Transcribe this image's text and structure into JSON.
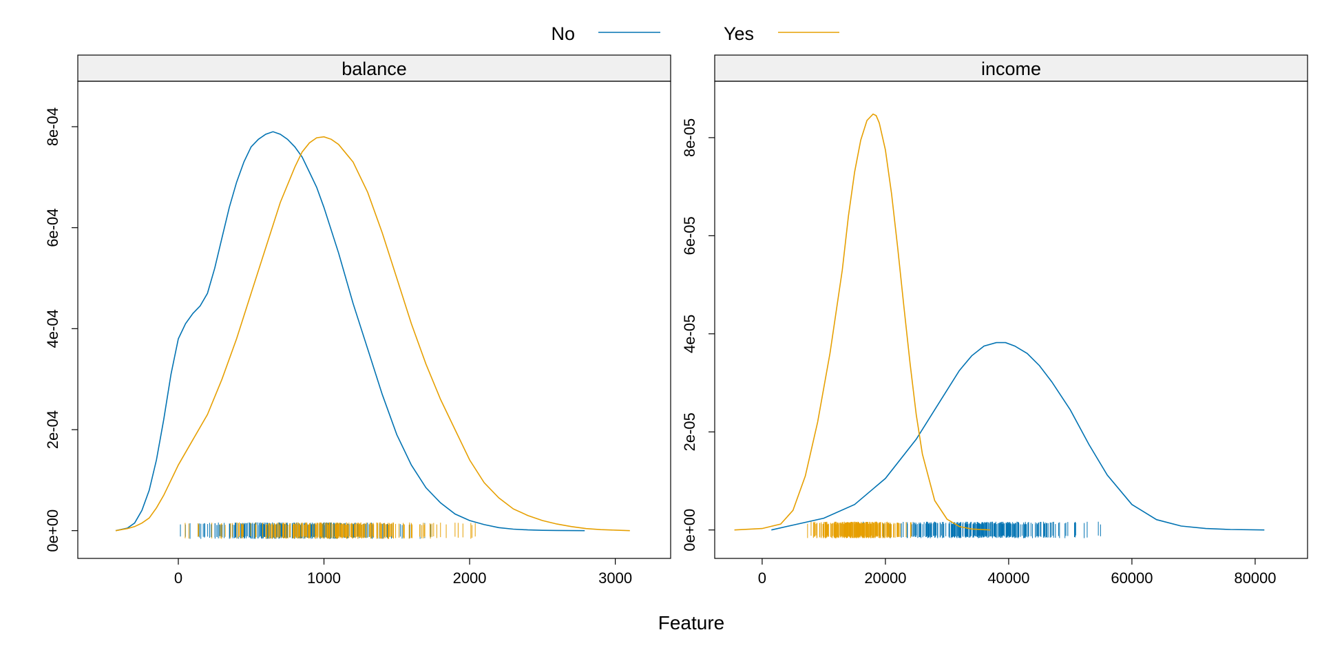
{
  "legend": {
    "placement": "top-center",
    "items": [
      {
        "label": "No",
        "color": "#0072B2"
      },
      {
        "label": "Yes",
        "color": "#E69F00"
      }
    ]
  },
  "chart_data": [
    {
      "type": "line",
      "panel_title": "balance",
      "xlabel": "Feature",
      "ylabel": "",
      "xlim": [
        -690,
        3380
      ],
      "ylim": [
        -5.5e-05,
        0.00089
      ],
      "x_ticks": [
        0,
        1000,
        2000,
        3000
      ],
      "x_tick_labels": [
        "0",
        "1000",
        "2000",
        "3000"
      ],
      "y_ticks": [
        0,
        0.0002,
        0.0004,
        0.0006,
        0.0008
      ],
      "y_tick_labels": [
        "0e+00",
        "2e-04",
        "4e-04",
        "6e-04",
        "8e-04"
      ],
      "grid": false,
      "series": [
        {
          "name": "No",
          "color": "#0072B2",
          "x": [
            -430,
            -350,
            -300,
            -250,
            -200,
            -150,
            -100,
            -50,
            0,
            50,
            100,
            150,
            200,
            250,
            300,
            350,
            400,
            450,
            500,
            550,
            600,
            650,
            700,
            750,
            800,
            850,
            900,
            950,
            1000,
            1100,
            1200,
            1300,
            1400,
            1500,
            1600,
            1700,
            1800,
            1900,
            2000,
            2100,
            2200,
            2300,
            2400,
            2500,
            2600,
            2700,
            2790
          ],
          "y": [
            0.0,
            5e-06,
            1.5e-05,
            4e-05,
            8e-05,
            0.00014,
            0.00022,
            0.00031,
            0.00038,
            0.00041,
            0.00043,
            0.000445,
            0.00047,
            0.00052,
            0.00058,
            0.00064,
            0.00069,
            0.00073,
            0.00076,
            0.000775,
            0.000785,
            0.00079,
            0.000785,
            0.000775,
            0.00076,
            0.00074,
            0.00071,
            0.00068,
            0.00064,
            0.00055,
            0.00045,
            0.00036,
            0.00027,
            0.00019,
            0.00013,
            8.5e-05,
            5.5e-05,
            3.3e-05,
            2e-05,
            1.2e-05,
            6e-06,
            3e-06,
            1.5e-06,
            7e-07,
            3e-07,
            1e-07,
            0.0
          ]
        },
        {
          "name": "Yes",
          "color": "#E69F00",
          "x": [
            -430,
            -350,
            -300,
            -250,
            -200,
            -150,
            -100,
            -50,
            0,
            100,
            200,
            300,
            400,
            500,
            600,
            700,
            800,
            850,
            900,
            950,
            1000,
            1050,
            1100,
            1200,
            1300,
            1400,
            1500,
            1600,
            1700,
            1800,
            1900,
            2000,
            2100,
            2200,
            2300,
            2400,
            2500,
            2600,
            2700,
            2800,
            2900,
            3000,
            3100
          ],
          "y": [
            0.0,
            4e-06,
            8e-06,
            1.5e-05,
            2.5e-05,
            4.5e-05,
            7e-05,
            0.0001,
            0.00013,
            0.00018,
            0.00023,
            0.0003,
            0.00038,
            0.00047,
            0.00056,
            0.00065,
            0.00072,
            0.00075,
            0.000768,
            0.000778,
            0.00078,
            0.000775,
            0.000765,
            0.00073,
            0.00067,
            0.00059,
            0.0005,
            0.00041,
            0.00033,
            0.00026,
            0.0002,
            0.00014,
            9.5e-05,
            6.5e-05,
            4.3e-05,
            3e-05,
            2e-05,
            1.3e-05,
            8e-06,
            4e-06,
            2e-06,
            1e-06,
            0.0
          ]
        }
      ]
    },
    {
      "type": "line",
      "panel_title": "income",
      "xlabel": "Feature",
      "ylabel": "",
      "xlim": [
        -7700,
        88500
      ],
      "ylim": [
        -5.8e-06,
        9.15e-05
      ],
      "x_ticks": [
        0,
        20000,
        40000,
        60000,
        80000
      ],
      "x_tick_labels": [
        "0",
        "20000",
        "40000",
        "60000",
        "80000"
      ],
      "y_ticks": [
        0,
        2e-05,
        4e-05,
        6e-05,
        8e-05
      ],
      "y_tick_labels": [
        "0e+00",
        "2e-05",
        "4e-05",
        "6e-05",
        "8e-05"
      ],
      "grid": false,
      "series": [
        {
          "name": "No",
          "color": "#0072B2",
          "x": [
            1500,
            5000,
            10000,
            15000,
            20000,
            25000,
            28000,
            30000,
            32000,
            34000,
            36000,
            38000,
            39500,
            41000,
            43000,
            45000,
            47000,
            50000,
            53000,
            56000,
            60000,
            64000,
            68000,
            72000,
            76000,
            81500
          ],
          "y": [
            0.0,
            1e-06,
            2.4e-06,
            5.2e-06,
            1.05e-05,
            1.85e-05,
            2.45e-05,
            2.85e-05,
            3.25e-05,
            3.55e-05,
            3.75e-05,
            3.82e-05,
            3.82e-05,
            3.75e-05,
            3.6e-05,
            3.35e-05,
            3.02e-05,
            2.45e-05,
            1.75e-05,
            1.12e-05,
            5.2e-06,
            2.1e-06,
            8e-07,
            3e-07,
            1e-07,
            0.0
          ]
        },
        {
          "name": "Yes",
          "color": "#E69F00",
          "x": [
            -4500,
            0,
            3000,
            5000,
            7000,
            9000,
            11000,
            13000,
            14000,
            15000,
            16000,
            17000,
            18000,
            18500,
            19000,
            20000,
            21000,
            22000,
            23000,
            24000,
            25000,
            26000,
            28000,
            30000,
            32000,
            34000,
            37000
          ],
          "y": [
            0.0,
            3e-07,
            1.2e-06,
            4e-06,
            1.1e-05,
            2.2e-05,
            3.6e-05,
            5.3e-05,
            6.4e-05,
            7.3e-05,
            7.95e-05,
            8.35e-05,
            8.48e-05,
            8.45e-05,
            8.3e-05,
            7.75e-05,
            6.85e-05,
            5.75e-05,
            4.55e-05,
            3.4e-05,
            2.35e-05,
            1.55e-05,
            6e-06,
            2.2e-06,
            7e-07,
            2e-07,
            0.0
          ]
        }
      ]
    }
  ]
}
